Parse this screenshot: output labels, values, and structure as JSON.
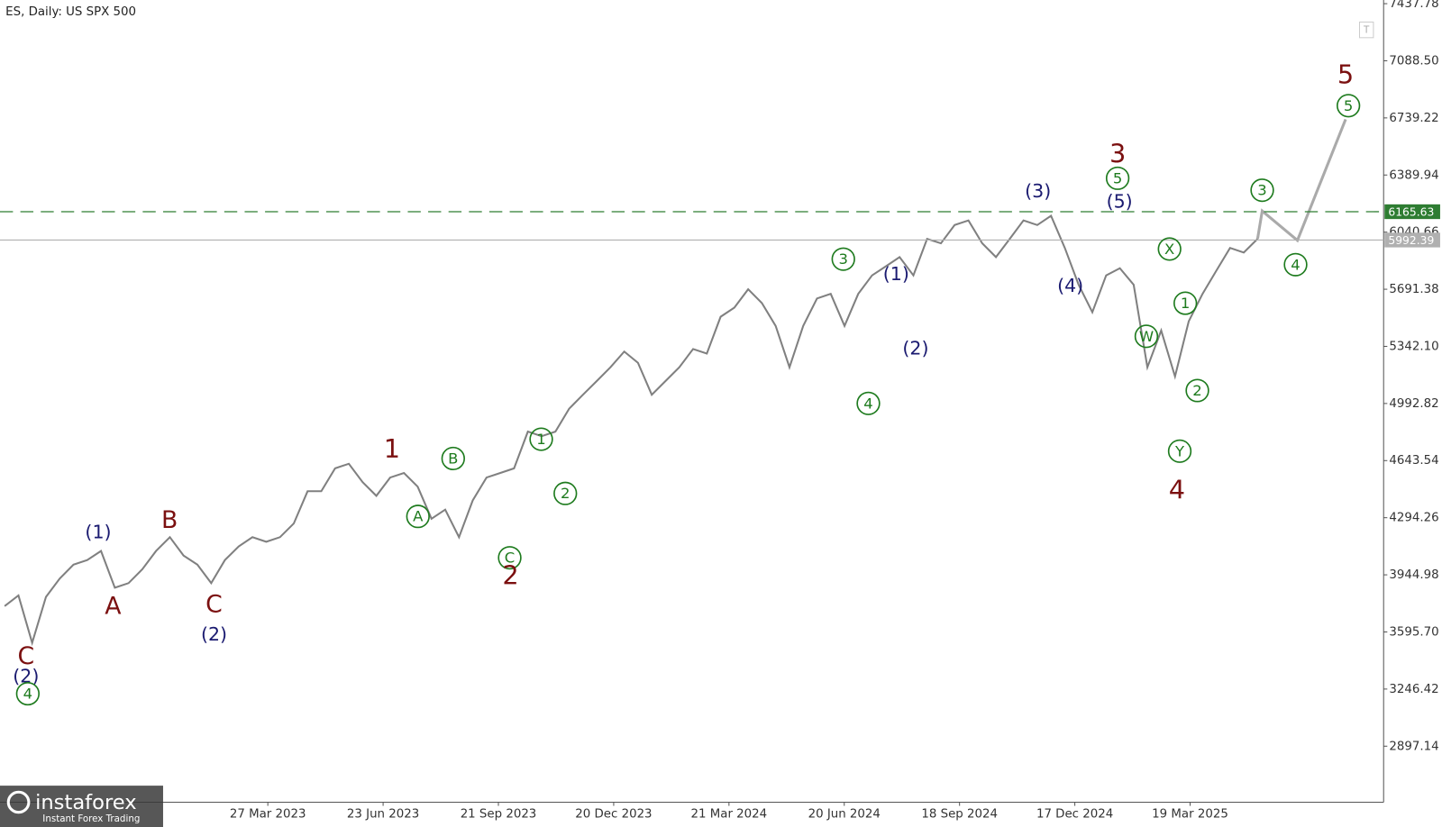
{
  "chart_data": {
    "type": "line",
    "title": "ES, Daily:  US SPX 500",
    "color": "#808080",
    "values": [
      3754,
      3819,
      3529,
      3810,
      3922,
      4007,
      4035,
      4091,
      3866,
      3894,
      3979,
      4091,
      4175,
      4063,
      4007,
      3894,
      4035,
      4119,
      4175,
      4147,
      4175,
      4259,
      4456,
      4456,
      4596,
      4624,
      4512,
      4428,
      4540,
      4568,
      4484,
      4288,
      4344,
      4175,
      4400,
      4540,
      4568,
      4596,
      4821,
      4793,
      4821,
      4961,
      5046,
      5130,
      5214,
      5310,
      5242,
      5046,
      5130,
      5214,
      5326,
      5298,
      5523,
      5579,
      5691,
      5607,
      5467,
      5214,
      5467,
      5635,
      5663,
      5467,
      5663,
      5776,
      5832,
      5888,
      5776,
      6000,
      5972,
      6084,
      6112,
      5972,
      5888,
      6000,
      6112,
      6084,
      6141,
      5944,
      5719,
      5551,
      5776,
      5820,
      5719,
      5214,
      5439,
      5158,
      5495,
      5663,
      5804,
      5944,
      5916,
      6000
    ],
    "projection": {
      "values": [
        6000,
        6170,
        5990,
        6730
      ],
      "color": "#aaaaaa"
    },
    "ylim": [
      2554.6,
      7460.2
    ],
    "yticks": [
      {
        "value": 7437.78,
        "label": "7437.78"
      },
      {
        "value": 7088.5,
        "label": "7088.50"
      },
      {
        "value": 6739.22,
        "label": "6739.22"
      },
      {
        "value": 6389.94,
        "label": "6389.94"
      },
      {
        "value": 6040.66,
        "label": "6040.66"
      },
      {
        "value": 5691.38,
        "label": "5691.38"
      },
      {
        "value": 5342.1,
        "label": "5342.10"
      },
      {
        "value": 4992.82,
        "label": "4992.82"
      },
      {
        "value": 4643.54,
        "label": "4643.54"
      },
      {
        "value": 4294.26,
        "label": "4294.26"
      },
      {
        "value": 3944.98,
        "label": "3944.98"
      },
      {
        "value": 3595.7,
        "label": "3595.70"
      },
      {
        "value": 3246.42,
        "label": "3246.42"
      },
      {
        "value": 2897.14,
        "label": "2897.14"
      }
    ],
    "x_labels": [
      "27 Mar 2023",
      "23 Jun 2023",
      "21 Sep 2023",
      "20 Dec 2023",
      "21 Mar 2024",
      "20 Jun 2024",
      "18 Sep 2024",
      "17 Dec 2024",
      "19 Mar 2025"
    ],
    "levels": [
      {
        "value": 6165.63,
        "label": "6165.63",
        "color": "#2e7d32",
        "dashed": true
      },
      {
        "value": 5992.39,
        "label": "5992.39",
        "color": "#b0b0b0",
        "dashed": false
      }
    ],
    "annotations": [
      {
        "text": "C",
        "color": "#7b1010",
        "circled": false
      },
      {
        "text": "(2)",
        "color": "#1a1a70",
        "circled": false
      },
      {
        "text": "4",
        "color": "#1e7b1e",
        "circled": true
      },
      {
        "text": "(1)",
        "color": "#1a1a70",
        "circled": false
      },
      {
        "text": "A",
        "color": "#7b1010",
        "circled": false
      },
      {
        "text": "B",
        "color": "#7b1010",
        "circled": false
      },
      {
        "text": "C",
        "color": "#7b1010",
        "circled": false
      },
      {
        "text": "(2)",
        "color": "#1a1a70",
        "circled": false
      },
      {
        "text": "1",
        "color": "#7b1010",
        "circled": false
      },
      {
        "text": "B",
        "color": "#1e7b1e",
        "circled": true
      },
      {
        "text": "A",
        "color": "#1e7b1e",
        "circled": true
      },
      {
        "text": "C",
        "color": "#1e7b1e",
        "circled": true
      },
      {
        "text": "2",
        "color": "#7b1010",
        "circled": false
      },
      {
        "text": "1",
        "color": "#1e7b1e",
        "circled": true
      },
      {
        "text": "2",
        "color": "#1e7b1e",
        "circled": true
      },
      {
        "text": "3",
        "color": "#1e7b1e",
        "circled": true
      },
      {
        "text": "4",
        "color": "#1e7b1e",
        "circled": true
      },
      {
        "text": "(1)",
        "color": "#1a1a70",
        "circled": false
      },
      {
        "text": "(2)",
        "color": "#1a1a70",
        "circled": false
      },
      {
        "text": "(3)",
        "color": "#1a1a70",
        "circled": false
      },
      {
        "text": "(4)",
        "color": "#1a1a70",
        "circled": false
      },
      {
        "text": "3",
        "color": "#7b1010",
        "circled": false
      },
      {
        "text": "5",
        "color": "#1e7b1e",
        "circled": true
      },
      {
        "text": "(5)",
        "color": "#1a1a70",
        "circled": false
      },
      {
        "text": "X",
        "color": "#1e7b1e",
        "circled": true
      },
      {
        "text": "W",
        "color": "#1e7b1e",
        "circled": true
      },
      {
        "text": "1",
        "color": "#1e7b1e",
        "circled": true
      },
      {
        "text": "2",
        "color": "#1e7b1e",
        "circled": true
      },
      {
        "text": "Y",
        "color": "#1e7b1e",
        "circled": true
      },
      {
        "text": "4",
        "color": "#7b1010",
        "circled": false
      },
      {
        "text": "3",
        "color": "#1e7b1e",
        "circled": true
      },
      {
        "text": "4",
        "color": "#1e7b1e",
        "circled": true
      },
      {
        "text": "5",
        "color": "#7b1010",
        "circled": false
      },
      {
        "text": "5",
        "color": "#1e7b1e",
        "circled": true
      }
    ],
    "logo": {
      "name": "instaforex",
      "tagline": "Instant Forex Trading"
    }
  }
}
